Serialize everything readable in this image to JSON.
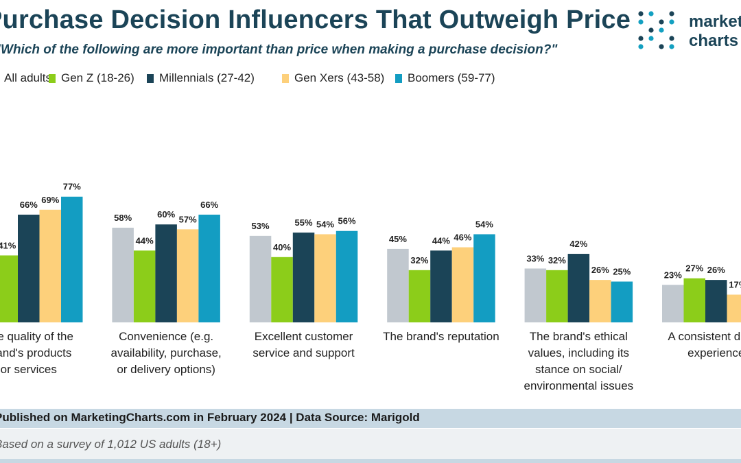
{
  "header": {
    "title": "Purchase Decision Influencers That Outweigh Price",
    "subtitle": "\"Which of the following are more important than price when making a purchase decision?\""
  },
  "logo": {
    "line1": "marketing",
    "line2": "charts",
    "dot_colors": [
      "#1b4457",
      "#13a0c1",
      "#8ccd1a"
    ]
  },
  "colors": {
    "All adults": "#c1c8cf",
    "Gen Z (18-26)": "#8ccd1a",
    "Millennials (27-42)": "#1b4457",
    "Gen Xers (43-58)": "#fdd07b",
    "Boomers (59-77)": "#139dc2"
  },
  "chart_data": {
    "type": "bar",
    "title": "Purchase Decision Influencers That Outweigh Price",
    "legend_position": "top-left",
    "ylim": [
      0,
      80
    ],
    "grid": false,
    "categories": [
      "The quality of the brand's products or services",
      "Convenience (e.g. availability, purchase, or delivery options)",
      "Excellent customer service and support",
      "The brand's reputation",
      "The brand's ethical values, including its stance on social/ environmental issues",
      "A consistent digital experience"
    ],
    "category_lines": [
      [
        "The quality of the",
        "brand's products",
        "or services"
      ],
      [
        "Convenience (e.g.",
        "availability, purchase,",
        "or delivery options)"
      ],
      [
        "Excellent customer",
        "service and support"
      ],
      [
        "The brand's reputation"
      ],
      [
        "The brand's ethical",
        "values, including its",
        "stance on social/",
        "environmental issues"
      ],
      [
        "A consistent digital",
        "experience"
      ]
    ],
    "series": [
      {
        "name": "All adults",
        "values": [
          null,
          58,
          53,
          45,
          33,
          23
        ]
      },
      {
        "name": "Gen Z (18-26)",
        "values": [
          41,
          44,
          40,
          32,
          32,
          27
        ]
      },
      {
        "name": "Millennials (27-42)",
        "values": [
          66,
          60,
          55,
          44,
          42,
          26
        ]
      },
      {
        "name": "Gen Xers (43-58)",
        "values": [
          69,
          57,
          54,
          46,
          26,
          17
        ]
      },
      {
        "name": "Boomers (59-77)",
        "values": [
          77,
          66,
          56,
          54,
          25,
          null
        ]
      }
    ],
    "value_suffix": "%"
  },
  "footer": {
    "source": "Published on MarketingCharts.com in February 2024 | Data Source: Marigold",
    "note": "Based on a survey of 1,012 US adults (18+)"
  }
}
